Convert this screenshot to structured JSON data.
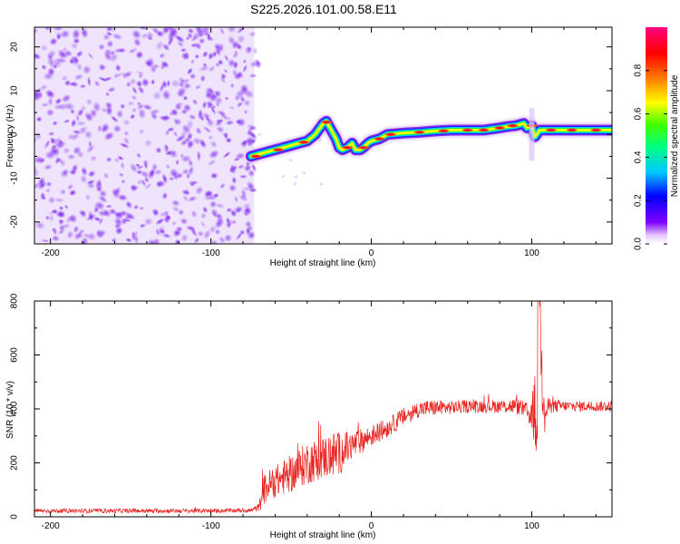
{
  "title": "S225.2026.101.00.58.E11",
  "chart_data": [
    {
      "type": "heatmap",
      "name": "spectrogram",
      "xlabel": "Height of straight line (km)",
      "ylabel": "Frequency (Hz)",
      "xlim": [
        -210,
        150
      ],
      "ylim": [
        -25,
        24.5
      ],
      "xticks": [
        -200,
        -100,
        0,
        100
      ],
      "yticks": [
        -20,
        -10,
        0,
        10,
        20
      ],
      "noise_region_x": [
        -210,
        -73
      ],
      "ridge": {
        "x": [
          -75,
          -70,
          -65,
          -60,
          -55,
          -50,
          -45,
          -40,
          -35,
          -30,
          -28,
          -25,
          -22,
          -20,
          -18,
          -15,
          -12,
          -10,
          -7,
          -5,
          -2,
          0,
          5,
          10,
          20,
          30,
          40,
          50,
          60,
          70,
          80,
          85,
          90,
          95,
          97,
          100,
          102,
          105,
          110,
          120,
          130,
          140,
          150
        ],
        "y": [
          -5,
          -4.5,
          -4,
          -3.5,
          -3,
          -2.5,
          -2,
          -1.5,
          0,
          2.5,
          3,
          1,
          -1,
          -3,
          -3.5,
          -3,
          -2,
          -3.5,
          -3.5,
          -3,
          -2,
          -1.5,
          -1,
          0,
          0.3,
          0.5,
          0.8,
          1,
          1,
          1,
          1.5,
          1.8,
          2,
          2.5,
          1.5,
          2,
          -0.5,
          1,
          1,
          1,
          1,
          1,
          1
        ]
      },
      "colorbar": {
        "label": "Normalized spectral amplitude",
        "range": [
          0,
          1
        ],
        "ticks": [
          "0.0",
          "0.2",
          "0.4",
          "0.6",
          "0.8"
        ],
        "colors": [
          "#ffffff",
          "#7f00ff",
          "#0000ff",
          "#00c8ff",
          "#00ff80",
          "#40ff00",
          "#ffff00",
          "#ff8000",
          "#ff0000",
          "#ff0080"
        ]
      }
    },
    {
      "type": "line",
      "name": "snr",
      "xlabel": "Height of straight line (km)",
      "ylabel": "SNR (10 * v/v)",
      "xlim": [
        -210,
        150
      ],
      "ylim": [
        0,
        800
      ],
      "xticks": [
        -200,
        -100,
        0,
        100
      ],
      "yticks": [
        0,
        200,
        400,
        600,
        800
      ],
      "color": "#e8201c",
      "envelope": {
        "x": [
          -210,
          -150,
          -100,
          -75,
          -70,
          -68,
          -66,
          -60,
          -50,
          -40,
          -30,
          -25,
          -20,
          -10,
          0,
          10,
          20,
          30,
          40,
          50,
          60,
          70,
          80,
          90,
          95,
          98,
          100,
          102,
          103,
          104,
          105,
          106,
          107,
          108,
          110,
          115,
          120,
          130,
          140,
          150
        ],
        "mean": [
          22,
          22,
          22,
          24,
          35,
          80,
          110,
          130,
          160,
          200,
          220,
          230,
          235,
          270,
          300,
          330,
          370,
          400,
          405,
          405,
          410,
          410,
          410,
          410,
          400,
          380,
          390,
          380,
          320,
          100,
          620,
          550,
          420,
          360,
          410,
          410,
          410,
          410,
          410,
          410
        ],
        "amp": [
          8,
          8,
          8,
          8,
          15,
          50,
          60,
          60,
          70,
          80,
          80,
          90,
          80,
          50,
          40,
          35,
          35,
          30,
          30,
          25,
          25,
          25,
          25,
          30,
          30,
          40,
          60,
          150,
          120,
          80,
          190,
          130,
          80,
          60,
          30,
          25,
          20,
          20,
          20,
          20
        ]
      }
    }
  ]
}
